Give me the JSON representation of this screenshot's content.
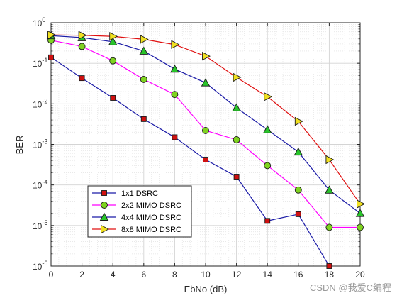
{
  "chart_data": {
    "type": "line",
    "xlabel": "EbNo (dB)",
    "ylabel": "BER",
    "xlim": [
      0,
      20
    ],
    "ylim": [
      1e-06,
      1
    ],
    "yscale": "log",
    "grid": true,
    "legend_position": "bottom-left",
    "x_ticks": [
      "0",
      "2",
      "4",
      "6",
      "8",
      "10",
      "12",
      "14",
      "16",
      "18",
      "20"
    ],
    "y_ticks": [
      {
        "base": "10",
        "exp": "0"
      },
      {
        "base": "10",
        "exp": "-1"
      },
      {
        "base": "10",
        "exp": "-2"
      },
      {
        "base": "10",
        "exp": "-3"
      },
      {
        "base": "10",
        "exp": "-4"
      },
      {
        "base": "10",
        "exp": "-5"
      },
      {
        "base": "10",
        "exp": "-6"
      }
    ],
    "x": [
      0,
      2,
      4,
      6,
      8,
      10,
      12,
      14,
      16,
      18,
      20
    ],
    "series": [
      {
        "name": "1x1 DSRC",
        "line_color": "#1a1aa6",
        "marker": "square",
        "marker_fill": "#d01010",
        "values": [
          0.14,
          0.043,
          0.014,
          0.0042,
          0.0015,
          0.00042,
          0.00016,
          1.3e-05,
          1.9e-05,
          1e-06,
          null
        ]
      },
      {
        "name": "2x2 MIMO DSRC",
        "line_color": "#ff00ff",
        "marker": "circle",
        "marker_fill": "#7fd320",
        "values": [
          0.37,
          0.26,
          0.115,
          0.04,
          0.017,
          0.0022,
          0.0013,
          0.0003,
          7.5e-05,
          9e-06,
          9e-06
        ]
      },
      {
        "name": "4x4 MIMO DSRC",
        "line_color": "#1a1aa6",
        "marker": "triangle",
        "marker_fill": "#28c42a",
        "values": [
          0.48,
          0.43,
          0.34,
          0.2,
          0.072,
          0.033,
          0.008,
          0.0023,
          0.00065,
          7.5e-05,
          2e-05
        ]
      },
      {
        "name": "8x8 MIMO DSRC",
        "line_color": "#e01010",
        "marker": "triangle-right",
        "marker_fill": "#f0e020",
        "values": [
          0.5,
          0.49,
          0.46,
          0.39,
          0.29,
          0.15,
          0.045,
          0.015,
          0.0037,
          0.00042,
          3.4e-05
        ]
      }
    ]
  },
  "watermark": "CSDN @我爱C编程"
}
